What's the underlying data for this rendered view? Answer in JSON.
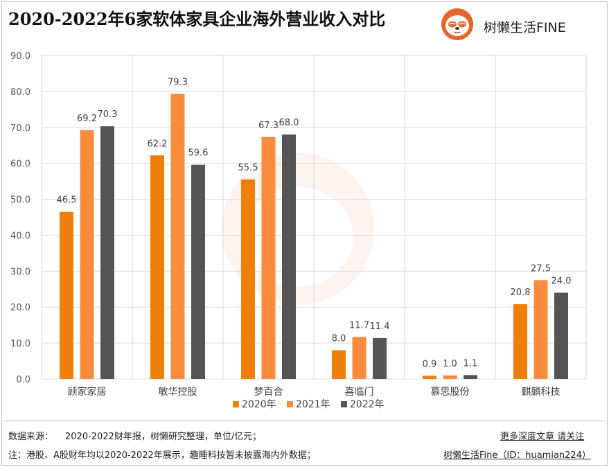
{
  "title": "2020-2022年6家软体家具企业海外营业收入对比",
  "brand": {
    "name": "树懒生活FINE",
    "icon": "sloth-logo-icon",
    "color": "#e8642b"
  },
  "footer": {
    "source_label": "数据来源：",
    "source_text": "2020-2022财年报，树懒研究整理，单位/亿元；",
    "note": "注：港股、A股财年均以2020-2022年展示，趣睡科技暂未披露海内外数据；",
    "follow": "更多深度文章 请关注",
    "account": "树懒生活Fine（ID：huamian224）"
  },
  "chart_data": {
    "type": "bar",
    "title": "",
    "xlabel": "",
    "ylabel": "",
    "categories": [
      "顾家家居",
      "敏华控股",
      "梦百合",
      "喜临门",
      "慕思股份",
      "麒麟科技"
    ],
    "series": [
      {
        "name": "2020年",
        "color": "#f07f09",
        "values": [
          46.5,
          62.2,
          55.5,
          8.0,
          0.9,
          20.8
        ]
      },
      {
        "name": "2021年",
        "color": "#fb8c3e",
        "values": [
          69.2,
          79.3,
          67.3,
          11.7,
          1.0,
          27.5
        ]
      },
      {
        "name": "2022年",
        "color": "#555555",
        "values": [
          70.3,
          59.6,
          68.0,
          11.4,
          1.1,
          24.0
        ]
      }
    ],
    "ylim": [
      0,
      90
    ],
    "yticks": [
      "0.0",
      "10.0",
      "20.0",
      "30.0",
      "40.0",
      "50.0",
      "60.0",
      "70.0",
      "80.0",
      "90.0"
    ],
    "grid": true,
    "legend_position": "bottom-center"
  }
}
